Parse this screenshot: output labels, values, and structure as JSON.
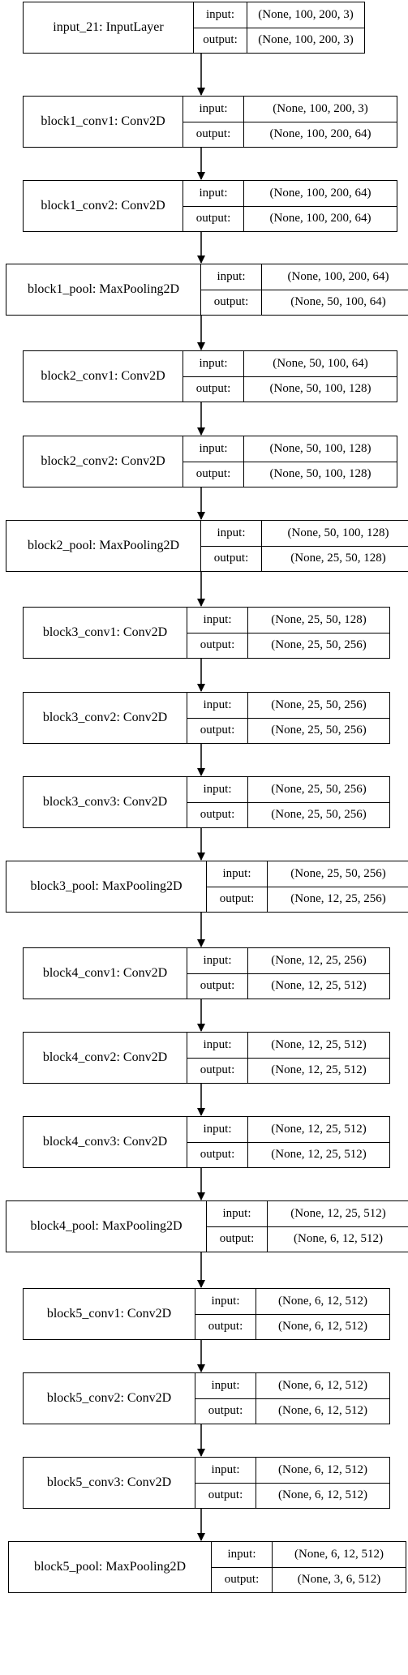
{
  "labels": {
    "input": "input:",
    "output": "output:"
  },
  "layers": [
    {
      "name": "input_21: InputLayer",
      "input": "(None, 100, 200, 3)",
      "output": "(None, 100, 200, 3)"
    },
    {
      "name": "block1_conv1: Conv2D",
      "input": "(None, 100, 200, 3)",
      "output": "(None, 100, 200, 64)"
    },
    {
      "name": "block1_conv2: Conv2D",
      "input": "(None, 100, 200, 64)",
      "output": "(None, 100, 200, 64)"
    },
    {
      "name": "block1_pool: MaxPooling2D",
      "input": "(None, 100, 200, 64)",
      "output": "(None, 50, 100, 64)"
    },
    {
      "name": "block2_conv1: Conv2D",
      "input": "(None, 50, 100, 64)",
      "output": "(None, 50, 100, 128)"
    },
    {
      "name": "block2_conv2: Conv2D",
      "input": "(None, 50, 100, 128)",
      "output": "(None, 50, 100, 128)"
    },
    {
      "name": "block2_pool: MaxPooling2D",
      "input": "(None, 50, 100, 128)",
      "output": "(None, 25, 50, 128)"
    },
    {
      "name": "block3_conv1: Conv2D",
      "input": "(None, 25, 50, 128)",
      "output": "(None, 25, 50, 256)"
    },
    {
      "name": "block3_conv2: Conv2D",
      "input": "(None, 25, 50, 256)",
      "output": "(None, 25, 50, 256)"
    },
    {
      "name": "block3_conv3: Conv2D",
      "input": "(None, 25, 50, 256)",
      "output": "(None, 25, 50, 256)"
    },
    {
      "name": "block3_pool: MaxPooling2D",
      "input": "(None, 25, 50, 256)",
      "output": "(None, 12, 25, 256)"
    },
    {
      "name": "block4_conv1: Conv2D",
      "input": "(None, 12, 25, 256)",
      "output": "(None, 12, 25, 512)"
    },
    {
      "name": "block4_conv2: Conv2D",
      "input": "(None, 12, 25, 512)",
      "output": "(None, 12, 25, 512)"
    },
    {
      "name": "block4_conv3: Conv2D",
      "input": "(None, 12, 25, 512)",
      "output": "(None, 12, 25, 512)"
    },
    {
      "name": "block4_pool: MaxPooling2D",
      "input": "(None, 12, 25, 512)",
      "output": "(None, 6, 12, 512)"
    },
    {
      "name": "block5_conv1: Conv2D",
      "input": "(None, 6, 12, 512)",
      "output": "(None, 6, 12, 512)"
    },
    {
      "name": "block5_conv2: Conv2D",
      "input": "(None, 6, 12, 512)",
      "output": "(None, 6, 12, 512)"
    },
    {
      "name": "block5_conv3: Conv2D",
      "input": "(None, 6, 12, 512)",
      "output": "(None, 6, 12, 512)"
    },
    {
      "name": "block5_pool: MaxPooling2D",
      "input": "(None, 6, 12, 512)",
      "output": "(None, 3, 6, 512)"
    }
  ]
}
